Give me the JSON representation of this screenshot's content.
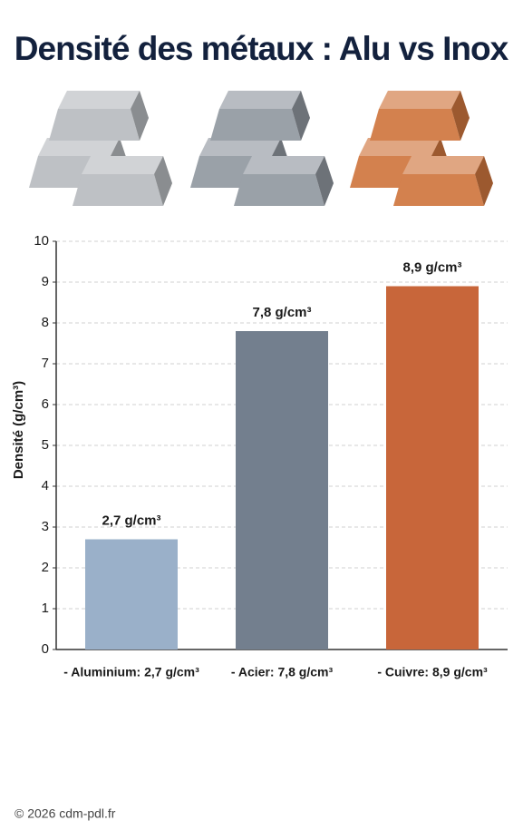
{
  "chart_data": {
    "type": "bar",
    "title": "Densité des métaux : Alu vs Inox",
    "ylabel": "Densité (g/cm³)",
    "categories": [
      "- Aluminium: 2,7 g/cm³",
      "- Acier: 7,8 g/cm³",
      "- Cuivre: 8,9 g/cm³"
    ],
    "values": [
      2.7,
      7.8,
      8.9
    ],
    "value_labels": [
      "2,7 g/cm³",
      "7,8 g/cm³",
      "8,9 g/cm³"
    ],
    "colors": [
      "#9ab0c9",
      "#737f8e",
      "#c8663a"
    ],
    "ylim": [
      0,
      10
    ],
    "yticks": [
      0,
      1,
      2,
      3,
      4,
      5,
      6,
      7,
      8,
      9,
      10
    ],
    "grid": true
  },
  "footer": "© 2026 cdm-pdl.fr"
}
